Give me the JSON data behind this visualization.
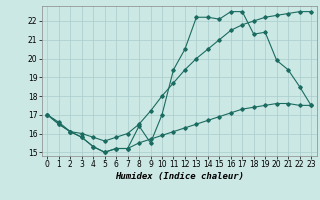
{
  "xlabel": "Humidex (Indice chaleur)",
  "bg_color": "#cce8e4",
  "grid_color": "#aacccc",
  "line_color": "#1a6b60",
  "xlim": [
    -0.5,
    23.5
  ],
  "ylim": [
    14.8,
    22.8
  ],
  "yticks": [
    15,
    16,
    17,
    18,
    19,
    20,
    21,
    22
  ],
  "xticks": [
    0,
    1,
    2,
    3,
    4,
    5,
    6,
    7,
    8,
    9,
    10,
    11,
    12,
    13,
    14,
    15,
    16,
    17,
    18,
    19,
    20,
    21,
    22,
    23
  ],
  "line1_x": [
    0,
    1,
    2,
    3,
    4,
    5,
    6,
    7,
    8,
    9,
    10,
    11,
    12,
    13,
    14,
    15,
    16,
    17,
    18,
    19,
    20,
    21,
    22,
    23
  ],
  "line1_y": [
    17.0,
    16.5,
    16.1,
    15.8,
    15.3,
    15.0,
    15.2,
    15.2,
    16.4,
    15.5,
    17.0,
    19.4,
    20.5,
    22.2,
    22.2,
    22.1,
    22.5,
    22.5,
    21.3,
    21.4,
    19.9,
    19.4,
    18.5,
    17.5
  ],
  "line2_x": [
    0,
    1,
    2,
    3,
    4,
    5,
    6,
    7,
    8,
    9,
    10,
    11,
    12,
    13,
    14,
    15,
    16,
    17,
    18,
    19,
    20,
    21,
    22,
    23
  ],
  "line2_y": [
    17.0,
    16.6,
    16.1,
    16.0,
    15.8,
    15.6,
    15.8,
    16.0,
    16.5,
    17.2,
    18.0,
    18.7,
    19.4,
    20.0,
    20.5,
    21.0,
    21.5,
    21.8,
    22.0,
    22.2,
    22.3,
    22.4,
    22.5,
    22.5
  ],
  "line3_x": [
    0,
    1,
    2,
    3,
    4,
    5,
    6,
    7,
    8,
    9,
    10,
    11,
    12,
    13,
    14,
    15,
    16,
    17,
    18,
    19,
    20,
    21,
    22,
    23
  ],
  "line3_y": [
    17.0,
    16.5,
    16.1,
    15.8,
    15.3,
    15.0,
    15.2,
    15.2,
    15.5,
    15.7,
    15.9,
    16.1,
    16.3,
    16.5,
    16.7,
    16.9,
    17.1,
    17.3,
    17.4,
    17.5,
    17.6,
    17.6,
    17.5,
    17.5
  ],
  "xlabel_fontsize": 6.5,
  "tick_fontsize": 5.5
}
